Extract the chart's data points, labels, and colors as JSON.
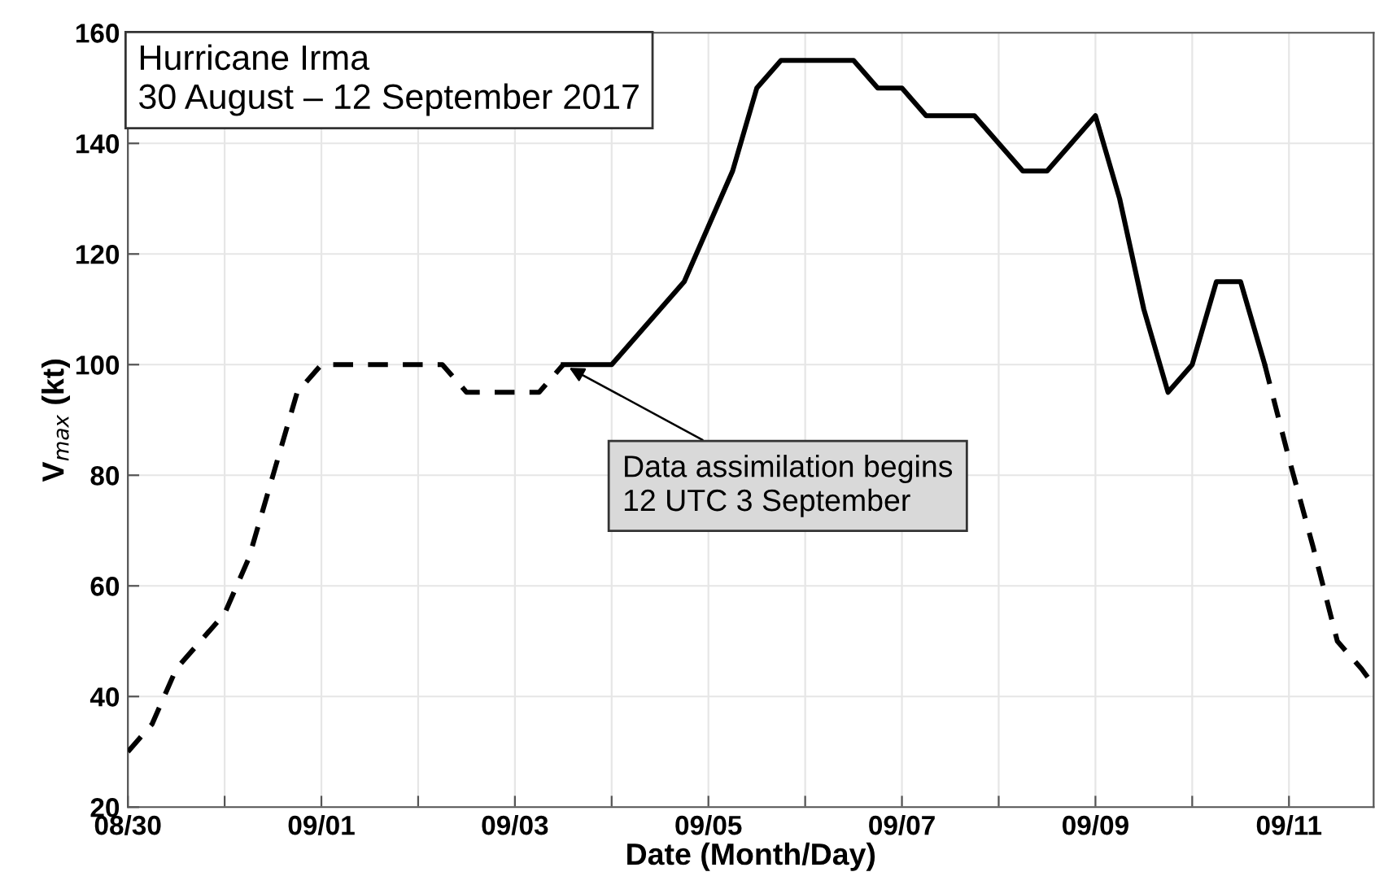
{
  "chart_data": {
    "type": "line",
    "xlabel": "Date (Month/Day)",
    "ylabel": "V$_{max}$ (kt)",
    "series": [
      {
        "color": "#000000",
        "line_style": "dashed",
        "x": [
          "2017-08-30T00:00",
          "2017-08-30T06:00",
          "2017-08-30T12:00",
          "2017-08-30T18:00",
          "2017-08-31T00:00",
          "2017-08-31T06:00",
          "2017-08-31T12:00",
          "2017-08-31T18:00",
          "2017-09-01T00:00",
          "2017-09-02T06:00",
          "2017-09-02T12:00",
          "2017-09-03T06:00",
          "2017-09-03T12:00"
        ],
        "values": [
          30,
          35,
          45,
          50,
          55,
          65,
          80,
          95,
          100,
          100,
          95,
          95,
          100
        ]
      },
      {
        "color": "#000000",
        "line_style": "solid",
        "x": [
          "2017-09-03T12:00",
          "2017-09-04T00:00",
          "2017-09-04T18:00",
          "2017-09-05T00:00",
          "2017-09-05T06:00",
          "2017-09-05T12:00",
          "2017-09-05T18:00",
          "2017-09-06T12:00",
          "2017-09-06T18:00",
          "2017-09-07T00:00",
          "2017-09-07T06:00",
          "2017-09-07T18:00",
          "2017-09-08T06:00",
          "2017-09-08T12:00",
          "2017-09-09T00:00",
          "2017-09-09T06:00",
          "2017-09-09T12:00",
          "2017-09-09T18:00",
          "2017-09-10T00:00",
          "2017-09-10T06:00",
          "2017-09-10T12:00",
          "2017-09-10T18:00"
        ],
        "values": [
          100,
          100,
          115,
          125,
          135,
          150,
          155,
          155,
          150,
          150,
          145,
          145,
          135,
          135,
          145,
          130,
          110,
          95,
          100,
          115,
          115,
          100
        ]
      },
      {
        "color": "#000000",
        "line_style": "dashed",
        "x": [
          "2017-09-10T18:00",
          "2017-09-11T00:00",
          "2017-09-11T06:00",
          "2017-09-11T12:00",
          "2017-09-11T18:00",
          "2017-09-11T21:00"
        ],
        "values": [
          100,
          83,
          67,
          50,
          45,
          42
        ]
      }
    ],
    "xlim": [
      "2017-08-30T00:00",
      "2017-09-11T21:00"
    ],
    "xticks": [
      {
        "value": "2017-08-30",
        "label": "08/30"
      },
      {
        "value": "2017-08-31",
        "label": null
      },
      {
        "value": "2017-09-01",
        "label": "09/01"
      },
      {
        "value": "2017-09-02",
        "label": null
      },
      {
        "value": "2017-09-03",
        "label": "09/03"
      },
      {
        "value": "2017-09-04",
        "label": null
      },
      {
        "value": "2017-09-05",
        "label": "09/05"
      },
      {
        "value": "2017-09-06",
        "label": null
      },
      {
        "value": "2017-09-07",
        "label": "09/07"
      },
      {
        "value": "2017-09-08",
        "label": null
      },
      {
        "value": "2017-09-09",
        "label": "09/09"
      },
      {
        "value": "2017-09-10",
        "label": null
      },
      {
        "value": "2017-09-11",
        "label": "09/11"
      }
    ],
    "ylim": [
      20,
      160
    ],
    "yticks": [
      20,
      40,
      60,
      80,
      100,
      120,
      140,
      160
    ],
    "grid": true,
    "legend": false,
    "marker": "none",
    "annotations": [
      "Hurricane Irma\n30 August – 12 September 2017",
      {
        "text": "Data assimilation begins\n12 UTC 3 September",
        "x": "2017-09-03T12:00",
        "y": 100
      }
    ]
  }
}
